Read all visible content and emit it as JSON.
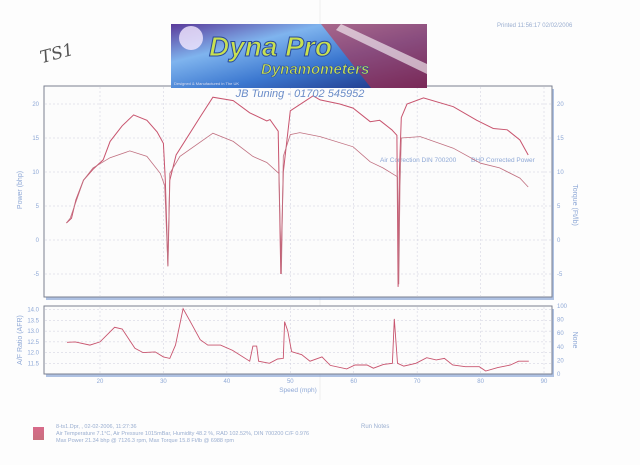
{
  "header": {
    "printed": "Printed 11:56:17  02/02/2006",
    "handwritten_note": "TS1",
    "logo_text": "Dyna Pro",
    "logo_subtext": "Dynamometers",
    "logo_tagline": "Designed & Manufactured in The UK",
    "subtitle": "JB Tuning - 01702 545952"
  },
  "legend": {
    "color": "#d06a88",
    "line1": "8-ts1.Dpr,   ,   02-02-2006,   11:27:36",
    "line2": "Air Temperature 7.1°C,    Air Pressure 1015mBar,    Humidity 48.2 %,    RAD 102.52%,    DIN 700200  C/F 0.976",
    "line3": "Max Power 21.34 bhp @ 7126.3 rpm,    Max Torque 15.8 Ft/lb @ 6988 rpm",
    "run_notes": "Run Notes"
  },
  "chart_data": [
    {
      "type": "line",
      "ylabel": "Power (bhp)",
      "y2label": "Torque (Ft/lb)",
      "ylim": [
        -8,
        22.5
      ],
      "yticks": [
        "20",
        "15",
        "10",
        "5",
        "0",
        "-5"
      ],
      "xlim": [
        12,
        92
      ],
      "grid": true,
      "line_color": "#c8546e",
      "annotations": [
        "Air Correction DIN 700200",
        "BHP Corrected Power"
      ],
      "series": [
        {
          "key": "power",
          "values": [
            [
              14.7,
              2.5
            ],
            [
              15.5,
              3.2
            ],
            [
              16.2,
              5.9
            ],
            [
              17.4,
              8.8
            ],
            [
              19,
              10.5
            ],
            [
              20.5,
              11.8
            ],
            [
              21.6,
              14.5
            ],
            [
              23.5,
              16.8
            ],
            [
              25.3,
              18.4
            ],
            [
              27.4,
              17.6
            ],
            [
              29,
              15.9
            ],
            [
              30,
              14.2
            ],
            [
              30.3,
              8.8
            ],
            [
              30.7,
              -3.8
            ],
            [
              31,
              8.8
            ],
            [
              32,
              12.5
            ],
            [
              35.8,
              18.1
            ],
            [
              37.8,
              21
            ],
            [
              41,
              20.5
            ],
            [
              43.6,
              18.7
            ],
            [
              46.3,
              17.5
            ],
            [
              46.8,
              17.7
            ],
            [
              48.1,
              16
            ],
            [
              48.5,
              -5
            ],
            [
              48.9,
              10
            ],
            [
              50,
              19
            ],
            [
              53.6,
              21.2
            ],
            [
              54.7,
              20.6
            ],
            [
              57.8,
              20
            ],
            [
              59.9,
              19.4
            ],
            [
              62.6,
              17.4
            ],
            [
              64.1,
              17.6
            ],
            [
              66,
              16.2
            ],
            [
              66.8,
              15.4
            ],
            [
              67,
              -6.9
            ],
            [
              67.2,
              10
            ],
            [
              67.5,
              18
            ],
            [
              68.4,
              20
            ],
            [
              71,
              20.9
            ],
            [
              75.7,
              19.6
            ],
            [
              79.4,
              17.6
            ],
            [
              82,
              16.4
            ],
            [
              84.2,
              16.2
            ],
            [
              86.2,
              14.7
            ],
            [
              87.5,
              12.5
            ]
          ]
        },
        {
          "key": "torque",
          "values": [
            [
              14.7,
              2.5
            ],
            [
              15.3,
              3.2
            ],
            [
              17.4,
              8.8
            ],
            [
              18.9,
              10.6
            ],
            [
              21.6,
              12.1
            ],
            [
              24.7,
              13.1
            ],
            [
              27.4,
              12.3
            ],
            [
              29.5,
              9.8
            ],
            [
              30.2,
              8
            ],
            [
              30.7,
              -3.9
            ],
            [
              31,
              9.8
            ],
            [
              32.6,
              12.3
            ],
            [
              37.8,
              15.7
            ],
            [
              41,
              14.5
            ],
            [
              44.1,
              12.3
            ],
            [
              46.3,
              11.4
            ],
            [
              48.2,
              9.8
            ],
            [
              48.6,
              -5
            ],
            [
              48.9,
              12.3
            ],
            [
              50,
              15.5
            ],
            [
              51.5,
              15.8
            ],
            [
              54.7,
              15.2
            ],
            [
              59.9,
              13.7
            ],
            [
              62.6,
              11.5
            ],
            [
              64.6,
              10.6
            ],
            [
              66.9,
              9.3
            ],
            [
              67.1,
              -6.5
            ],
            [
              67.3,
              8
            ],
            [
              67.5,
              15
            ],
            [
              70.5,
              15.2
            ],
            [
              75.7,
              13.5
            ],
            [
              80,
              11.3
            ],
            [
              83,
              10.6
            ],
            [
              86.2,
              9.1
            ],
            [
              87.5,
              7.8
            ]
          ]
        }
      ]
    },
    {
      "type": "line",
      "xlabel": "Speed (mph)",
      "ylabel": "A/F Ratio (AFR)",
      "y2label": "None",
      "xticks": [
        "20",
        "30",
        "40",
        "50",
        "60",
        "70",
        "80",
        "90"
      ],
      "yticks": [
        "14.0",
        "13.5",
        "13.0",
        "12.5",
        "12.0",
        "11.5"
      ],
      "y2ticks": [
        "100",
        "80",
        "60",
        "40",
        "20",
        "0"
      ],
      "grid": true,
      "line_color": "#c8546e",
      "series": [
        {
          "key": "afr",
          "values": [
            [
              14.8,
              12.48
            ],
            [
              16.1,
              12.5
            ],
            [
              18.4,
              12.35
            ],
            [
              20,
              12.5
            ],
            [
              22.3,
              13.18
            ],
            [
              23.5,
              13.1
            ],
            [
              25.5,
              12.2
            ],
            [
              26.8,
              12.0
            ],
            [
              28.7,
              12.03
            ],
            [
              30,
              11.8
            ],
            [
              31,
              11.73
            ],
            [
              31.9,
              12.35
            ],
            [
              33.1,
              14.05
            ],
            [
              34.5,
              13.3
            ],
            [
              35.8,
              12.6
            ],
            [
              37,
              12.35
            ],
            [
              39,
              12.35
            ],
            [
              40.9,
              12.1
            ],
            [
              43.6,
              11.6
            ],
            [
              44.1,
              12.3
            ],
            [
              44.7,
              12.3
            ],
            [
              45,
              11.6
            ],
            [
              46.7,
              11.5
            ],
            [
              48,
              11.7
            ],
            [
              48.9,
              11.73
            ],
            [
              49.1,
              13.44
            ],
            [
              49.6,
              13.0
            ],
            [
              50.2,
              12.04
            ],
            [
              51.8,
              11.9
            ],
            [
              53.1,
              11.6
            ],
            [
              55,
              11.8
            ],
            [
              56.3,
              11.4
            ],
            [
              58.9,
              11.24
            ],
            [
              60.2,
              11.42
            ],
            [
              62.1,
              11.42
            ],
            [
              63.1,
              11.27
            ],
            [
              64.7,
              11.45
            ],
            [
              66.1,
              11.5
            ],
            [
              66.4,
              13.57
            ],
            [
              66.9,
              11.5
            ],
            [
              67.9,
              11.37
            ],
            [
              69.8,
              11.5
            ],
            [
              71.5,
              11.76
            ],
            [
              73,
              11.66
            ],
            [
              74.3,
              11.73
            ],
            [
              75.6,
              11.42
            ],
            [
              77.6,
              11.34
            ],
            [
              79.8,
              11.34
            ],
            [
              80.8,
              11.14
            ],
            [
              82.7,
              11.3
            ],
            [
              84.7,
              11.42
            ],
            [
              86,
              11.6
            ],
            [
              87.6,
              11.6
            ]
          ]
        }
      ]
    }
  ]
}
